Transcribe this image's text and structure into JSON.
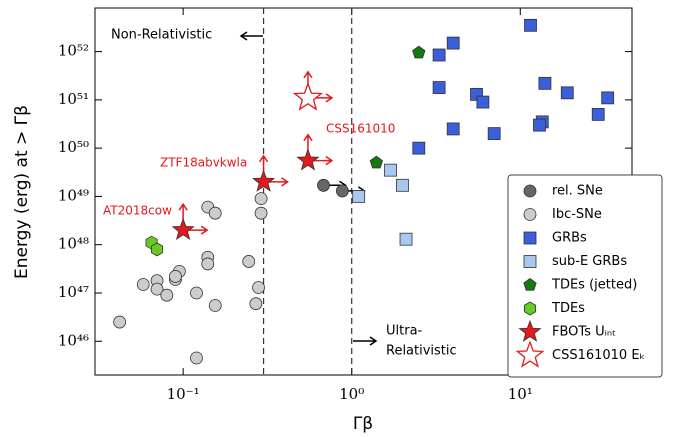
{
  "chart_data": {
    "type": "scatter",
    "xlabel": "Γβ",
    "ylabel": "Energy (erg) at > Γβ",
    "xscale": "log",
    "yscale": "log",
    "xlim": [
      0.03,
      46
    ],
    "ylim": [
      2e+45,
      8e+52
    ],
    "xticks": [
      {
        "value": 0.1,
        "label": "10⁻¹"
      },
      {
        "value": 1,
        "label": "10⁰"
      },
      {
        "value": 10,
        "label": "10¹"
      }
    ],
    "yticks": [
      {
        "value": 1e+46,
        "label": "10⁴⁶"
      },
      {
        "value": 1e+47,
        "label": "10⁴⁷"
      },
      {
        "value": 1e+48,
        "label": "10⁴⁸"
      },
      {
        "value": 1e+49,
        "label": "10⁴⁹"
      },
      {
        "value": 1e+50,
        "label": "10⁵⁰"
      },
      {
        "value": 1e+51,
        "label": "10⁵¹"
      },
      {
        "value": 1e+52,
        "label": "10⁵²"
      }
    ],
    "vlines": [
      0.3,
      1
    ],
    "annotations": {
      "non_relativistic": "Non-Relativistic",
      "ultra_relativistic": [
        "Ultra-",
        "Relativistic"
      ],
      "css": "CSS161010",
      "ztf": "ZTF18abvkwla",
      "cow": "AT2018cow"
    },
    "legend": "lower right",
    "series": [
      {
        "name": "rel. SNe",
        "color": "#666666",
        "marker": "circle",
        "x": [
          0.68,
          0.88
        ],
        "values": [
          1.7e+49,
          1.3e+49
        ]
      },
      {
        "name": "Ibc-SNe",
        "color": "#cccccc",
        "marker": "circle",
        "x": [
          0.042,
          0.058,
          0.07,
          0.07,
          0.08,
          0.09,
          0.095,
          0.09,
          0.12,
          0.14,
          0.14,
          0.14,
          0.155,
          0.155,
          0.12,
          0.245,
          0.27,
          0.28,
          0.29,
          0.29
        ],
        "values": [
          2.5e+46,
          1.5e+47,
          1.8e+47,
          1.2e+47,
          9e+46,
          1.9e+47,
          2.8e+47,
          2.2e+47,
          1e+47,
          5.5e+47,
          4e+47,
          6e+48,
          4.5e+48,
          5.5e+46,
          4.5e+45,
          4.5e+47,
          6e+46,
          1.3e+47,
          9e+48,
          4.5e+48
        ]
      },
      {
        "name": "GRBs",
        "color": "#3a5fd9",
        "marker": "square",
        "x": [
          11.5,
          14,
          19,
          33,
          4,
          3.3,
          5.5,
          6,
          3.3,
          4,
          7,
          13.5,
          13,
          29,
          2.5
        ],
        "values": [
          3.5e+52,
          2.2e+51,
          1.4e+51,
          1.1e+51,
          1.5e+52,
          8.5e+51,
          1.3e+51,
          9e+50,
          1.8e+51,
          2.5e+50,
          2e+50,
          3.5e+50,
          3e+50,
          5e+50,
          1e+50
        ]
      },
      {
        "name": "sub-E GRBs",
        "color": "#a9c8f0",
        "marker": "square",
        "x": [
          1.1,
          1.7,
          2.0,
          2.1
        ],
        "values": [
          1e+49,
          3.5e+49,
          1.7e+49,
          1.3e+48
        ]
      },
      {
        "name": "TDEs (jetted)",
        "color": "#117a11",
        "marker": "pentagon",
        "x": [
          2.5,
          1.4
        ],
        "values": [
          9.5e+51,
          5e+49
        ]
      },
      {
        "name": "TDEs",
        "color": "#66cc22",
        "marker": "hexagon",
        "x": [
          0.065,
          0.07
        ],
        "values": [
          1.1e+48,
          8e+47
        ]
      },
      {
        "name": "FBOTs Uᵢₙₜ",
        "color": "#e3191c",
        "marker": "star",
        "x": [
          0.1,
          0.3,
          0.55
        ],
        "values": [
          2e+48,
          2e+49,
          5.5e+49
        ]
      },
      {
        "name": "CSS161010 Eₖ",
        "color": "#e3191c",
        "marker": "star-open",
        "x": [
          0.55
        ],
        "values": [
          1.1e+51
        ]
      }
    ]
  }
}
